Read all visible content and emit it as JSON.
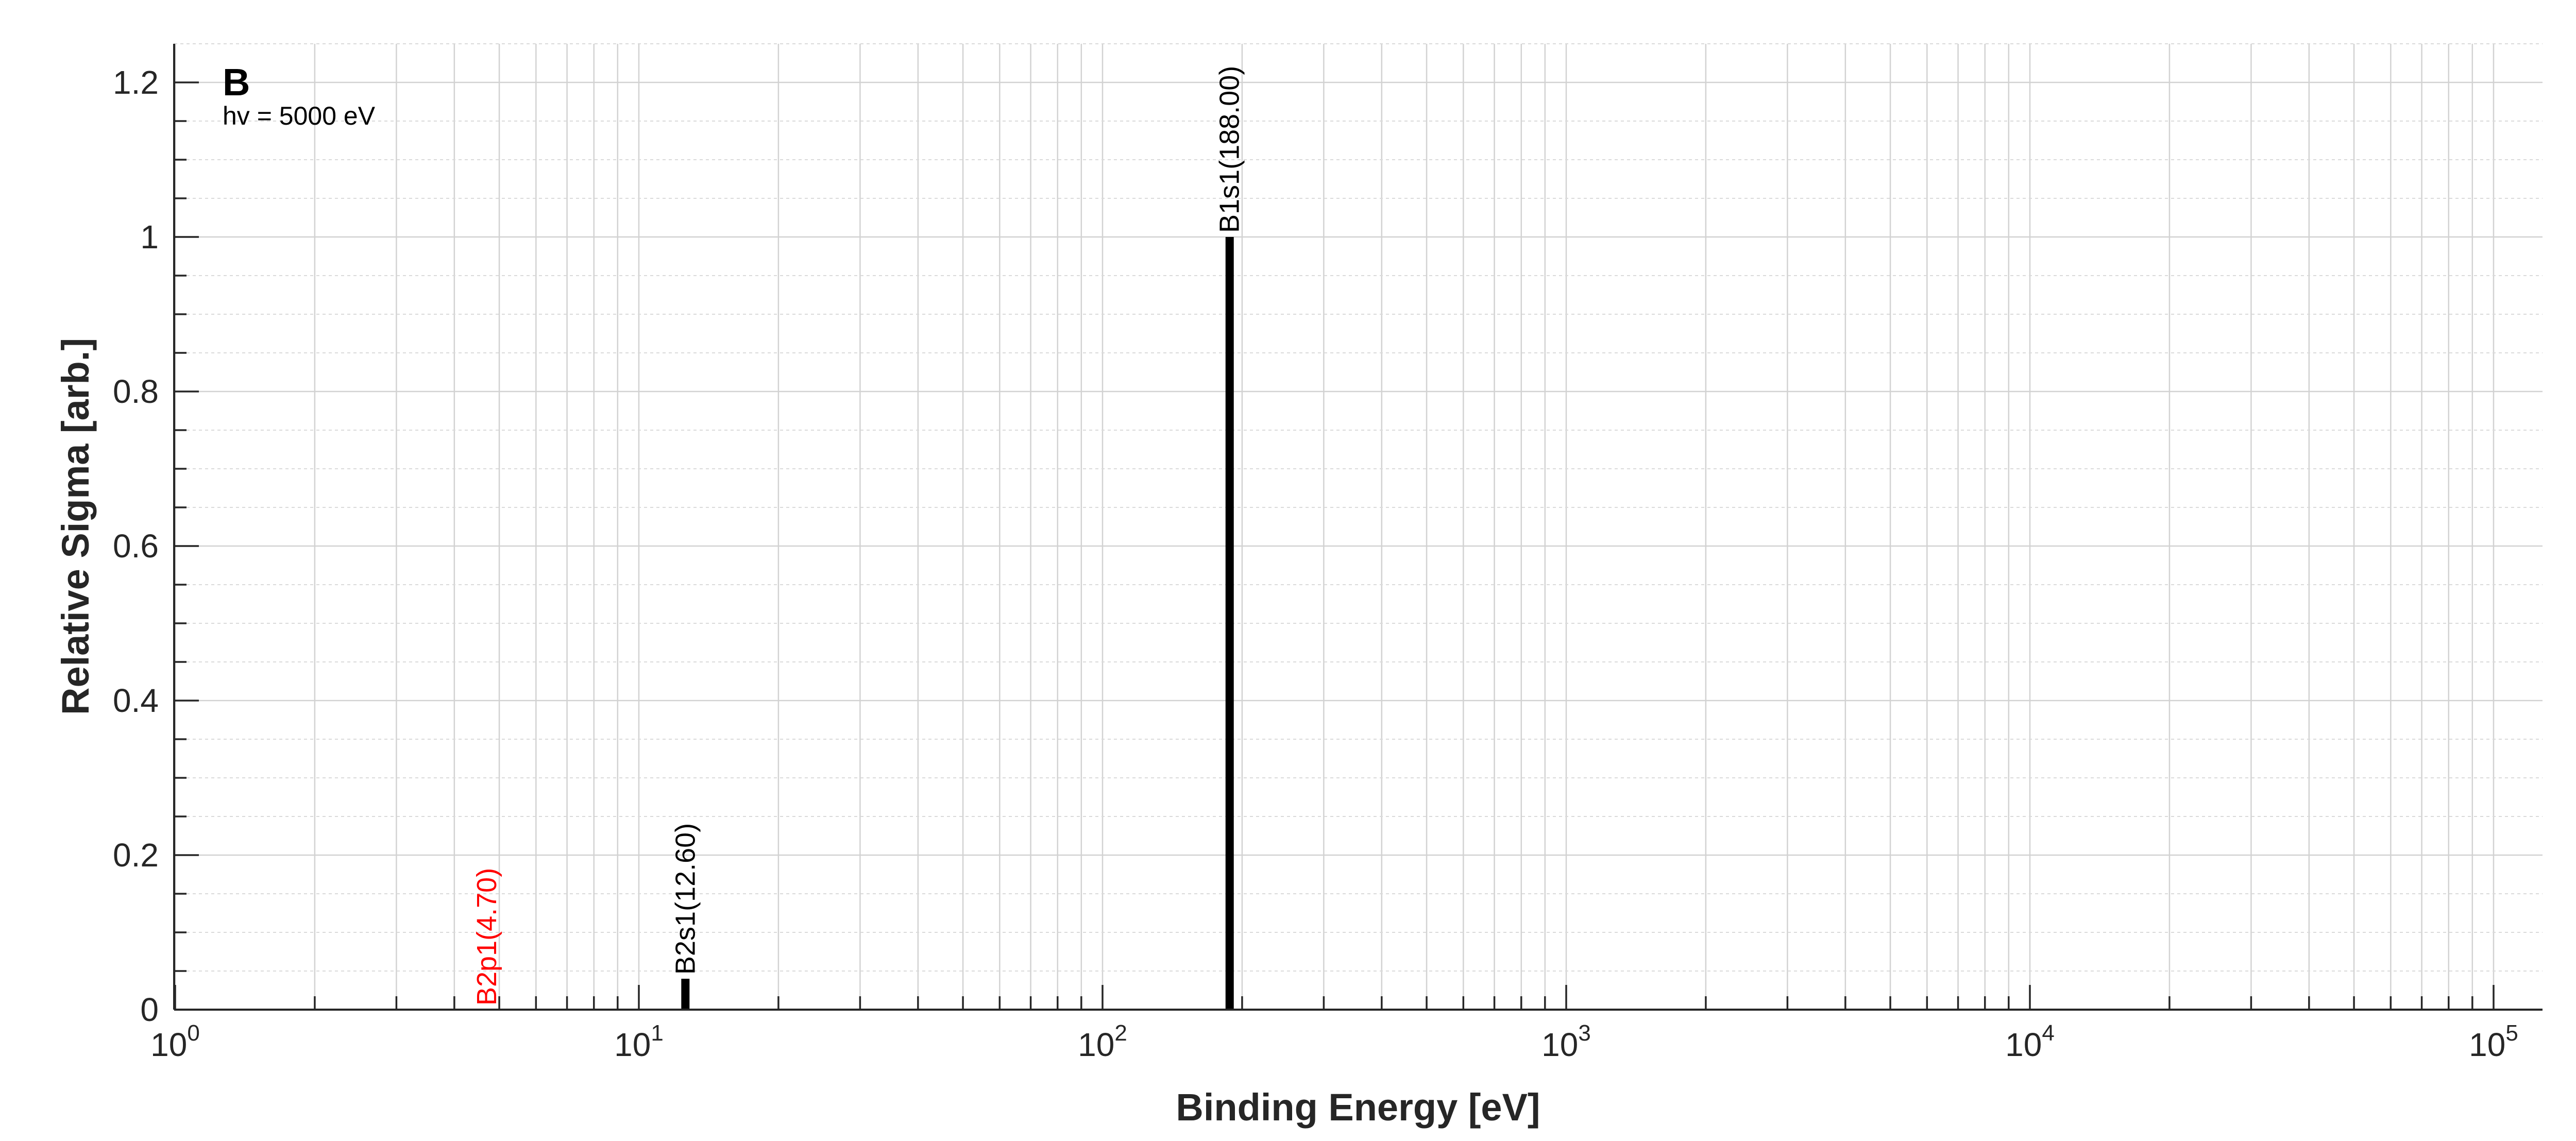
{
  "chart_data": {
    "type": "bar",
    "title": "B",
    "subtitle": "hv = 5000 eV",
    "xlabel": "Binding Energy [eV]",
    "ylabel": "Relative Sigma [arb.]",
    "x_scale": "log",
    "xlim": [
      1,
      100000
    ],
    "ylim": [
      0,
      1.25
    ],
    "grid": true,
    "x_ticks": [
      {
        "base": "10",
        "exp": "0"
      },
      {
        "base": "10",
        "exp": "1"
      },
      {
        "base": "10",
        "exp": "2"
      },
      {
        "base": "10",
        "exp": "3"
      },
      {
        "base": "10",
        "exp": "4"
      },
      {
        "base": "10",
        "exp": "5"
      }
    ],
    "y_ticks": [
      "0",
      "0.2",
      "0.4",
      "0.6",
      "0.8",
      "1",
      "1.2"
    ],
    "peaks": [
      {
        "label": "B2p1(4.70)",
        "x": 4.7,
        "y": 0.0,
        "color": "#ff0000"
      },
      {
        "label": "B2s1(12.60)",
        "x": 12.6,
        "y": 0.04,
        "color": "#000000"
      },
      {
        "label": "B1s1(188.00)",
        "x": 188.0,
        "y": 1.0,
        "color": "#000000"
      }
    ]
  }
}
